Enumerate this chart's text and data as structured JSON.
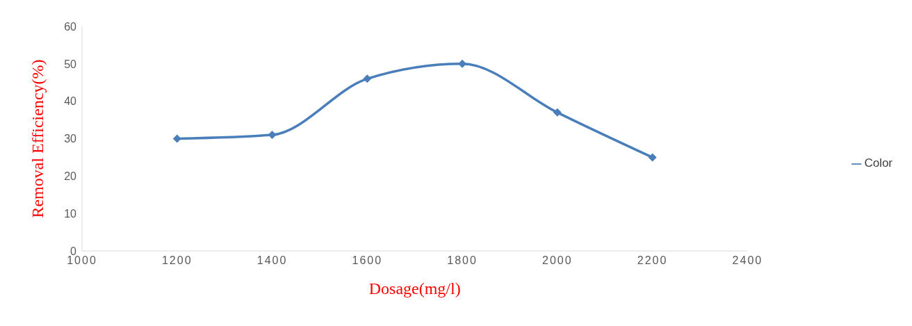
{
  "chart_data": {
    "type": "line",
    "xlabel": "Dosage(mg/l)",
    "ylabel": "Removal Efficiency(%)",
    "x": [
      1200,
      1400,
      1600,
      1800,
      2000,
      2200
    ],
    "series": [
      {
        "name": "Color",
        "color": "#4a7ebb",
        "values": [
          30,
          31,
          46,
          50,
          37,
          25
        ]
      }
    ],
    "xlim": [
      1000,
      2400
    ],
    "xticks": [
      1000,
      1200,
      1400,
      1600,
      1800,
      2000,
      2200,
      2400
    ],
    "ylim": [
      0,
      60
    ],
    "yticks": [
      0,
      10,
      20,
      30,
      40,
      50,
      60
    ],
    "legend": "right",
    "marker": "diamond",
    "line_style": "solid"
  }
}
